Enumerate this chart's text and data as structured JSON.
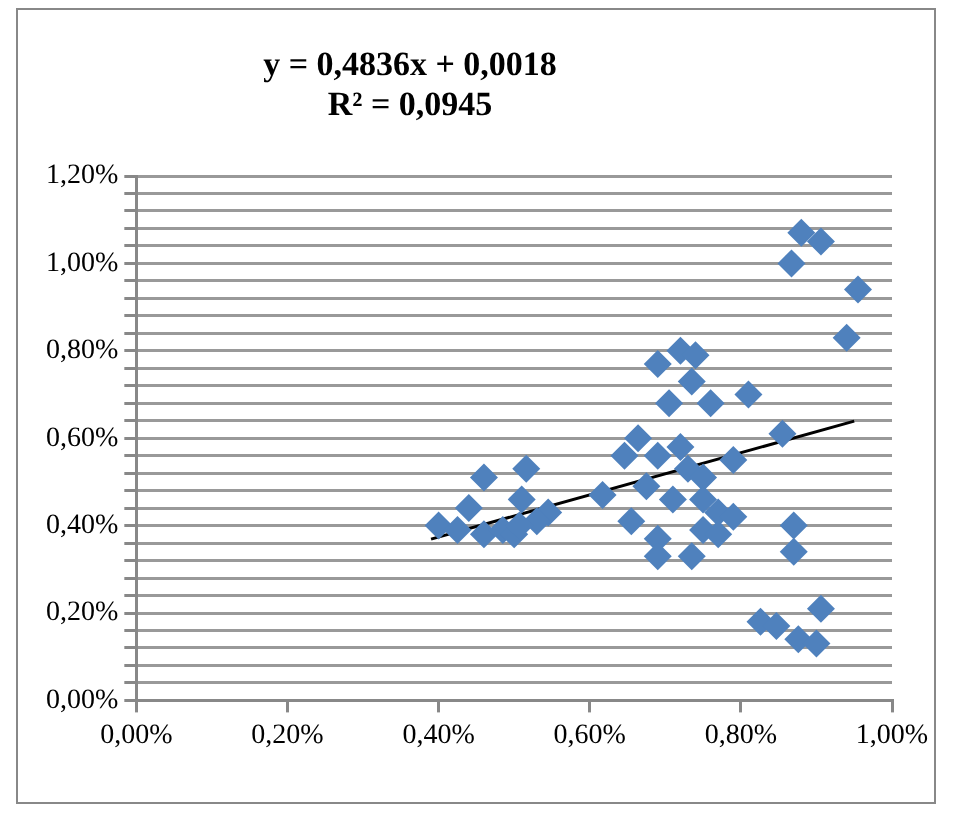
{
  "chart_data": {
    "type": "scatter",
    "annotations": [
      "y = 0,4836x + 0,0018",
      "R² = 0,0945"
    ],
    "xlim": [
      0,
      1
    ],
    "xticks": [
      {
        "value": 0,
        "label": "0,00%"
      },
      {
        "value": 0.2,
        "label": "0,20%"
      },
      {
        "value": 0.4,
        "label": "0,40%"
      },
      {
        "value": 0.6,
        "label": "0,60%"
      },
      {
        "value": 0.8,
        "label": "0,80%"
      },
      {
        "value": 1,
        "label": "1,00%"
      }
    ],
    "ylim": [
      0,
      1.2
    ],
    "yticks": [
      {
        "value": 0,
        "label": "0,00%"
      },
      {
        "value": 0.04,
        "label": null
      },
      {
        "value": 0.08,
        "label": null
      },
      {
        "value": 0.12,
        "label": null
      },
      {
        "value": 0.16,
        "label": null
      },
      {
        "value": 0.2,
        "label": "0,20%"
      },
      {
        "value": 0.24,
        "label": null
      },
      {
        "value": 0.28,
        "label": null
      },
      {
        "value": 0.32,
        "label": null
      },
      {
        "value": 0.36,
        "label": null
      },
      {
        "value": 0.4,
        "label": "0,40%"
      },
      {
        "value": 0.44,
        "label": null
      },
      {
        "value": 0.48,
        "label": null
      },
      {
        "value": 0.52,
        "label": null
      },
      {
        "value": 0.56,
        "label": null
      },
      {
        "value": 0.6,
        "label": "0,60%"
      },
      {
        "value": 0.64,
        "label": null
      },
      {
        "value": 0.68,
        "label": null
      },
      {
        "value": 0.72,
        "label": null
      },
      {
        "value": 0.76,
        "label": null
      },
      {
        "value": 0.8,
        "label": "0,80%"
      },
      {
        "value": 0.84,
        "label": null
      },
      {
        "value": 0.88,
        "label": null
      },
      {
        "value": 0.92,
        "label": null
      },
      {
        "value": 0.96,
        "label": null
      },
      {
        "value": 1,
        "label": "1,00%"
      },
      {
        "value": 1.04,
        "label": null
      },
      {
        "value": 1.08,
        "label": null
      },
      {
        "value": 1.12,
        "label": null
      },
      {
        "value": 1.16,
        "label": null
      },
      {
        "value": 1.2,
        "label": "1,20%"
      }
    ],
    "grid": "y",
    "legend": false,
    "series": [
      {
        "color": "#4f81bd",
        "marker": "diamond",
        "x": [
          0.4,
          0.425,
          0.44,
          0.46,
          0.46,
          0.485,
          0.5,
          0.52,
          0.545,
          0.51,
          0.516,
          0.53,
          0.507,
          0.617,
          0.655,
          0.646,
          0.664,
          0.69,
          0.72,
          0.74,
          0.735,
          0.705,
          0.76,
          0.81,
          0.855,
          0.69,
          0.72,
          0.73,
          0.75,
          0.79,
          0.675,
          0.71,
          0.75,
          0.77,
          0.79,
          0.69,
          0.69,
          0.735,
          0.75,
          0.77,
          0.87,
          0.87,
          0.826,
          0.847,
          0.876,
          0.9,
          0.906,
          0.867,
          0.88,
          0.906,
          0.955,
          0.94
        ],
        "values": [
          0.4,
          0.39,
          0.44,
          0.51,
          0.38,
          0.39,
          0.38,
          null,
          0.43,
          0.46,
          0.53,
          0.41,
          0.4,
          0.47,
          0.41,
          0.56,
          0.6,
          0.77,
          0.8,
          0.79,
          0.73,
          0.68,
          0.68,
          0.7,
          0.61,
          0.56,
          0.58,
          0.53,
          0.51,
          0.55,
          0.49,
          0.46,
          0.46,
          0.43,
          0.42,
          0.37,
          0.33,
          0.33,
          0.39,
          0.38,
          0.4,
          0.34,
          0.18,
          0.17,
          0.14,
          0.13,
          0.21,
          1.0,
          1.07,
          1.05,
          0.94,
          0.83
        ]
      },
      {
        "type": "line",
        "color": "#000000",
        "marker": "none",
        "x": [
          0.39,
          0.95
        ],
        "values": [
          0.369,
          0.639
        ]
      }
    ]
  }
}
